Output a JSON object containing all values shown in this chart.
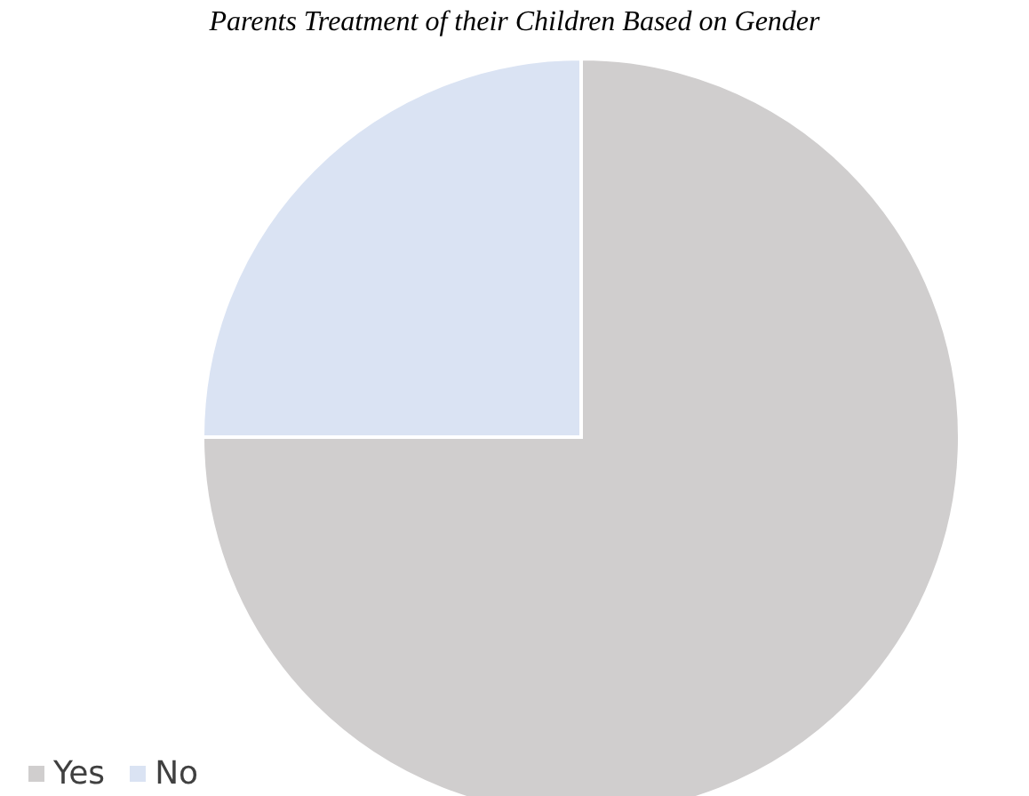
{
  "chart_data": {
    "type": "pie",
    "title": "Parents Treatment of their Children Based on Gender",
    "categories": [
      "Yes",
      "No"
    ],
    "values": [
      75,
      25
    ],
    "colors": [
      "#d0cece",
      "#dae3f3"
    ],
    "legend": "bottom left"
  }
}
